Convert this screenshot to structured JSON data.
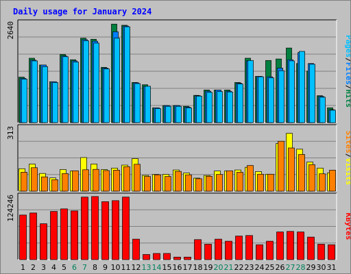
{
  "chart_data": {
    "type": "bar",
    "title": "Daily usage for January 2024",
    "categories": [
      "1",
      "2",
      "3",
      "4",
      "5",
      "6",
      "7",
      "8",
      "9",
      "10",
      "11",
      "12",
      "13",
      "14",
      "15",
      "16",
      "17",
      "18",
      "19",
      "20",
      "21",
      "22",
      "23",
      "24",
      "25",
      "26",
      "27",
      "28",
      "29",
      "30",
      "31"
    ],
    "weekend_days": [
      "6",
      "7",
      "13",
      "14",
      "20",
      "21",
      "27",
      "28"
    ],
    "colors": {
      "hits": "#008040",
      "files": "#0080ff",
      "pages": "#00c0ff",
      "visits": "#ffff00",
      "sites": "#ff8000",
      "kbytes": "#ff0000",
      "weekday_label": "#000000",
      "weekend_label": "#00805c"
    },
    "panels": [
      {
        "id": "hits-files-pages",
        "ylabel_max": "2640",
        "ylim": [
          0,
          2640
        ],
        "legend_order": [
          "Pages",
          "Files",
          "Hits"
        ],
        "series": [
          {
            "name": "Hits",
            "color": "#008040",
            "values": [
              1200,
              1700,
              1520,
              1080,
              1800,
              1660,
              2230,
              2200,
              1460,
              2600,
              2570,
              1060,
              1000,
              390,
              450,
              450,
              430,
              720,
              860,
              860,
              860,
              1060,
              1700,
              1220,
              1640,
              1680,
              1970,
              1560,
              1360,
              710,
              390
            ]
          },
          {
            "name": "Files",
            "color": "#0080ff",
            "values": [
              1170,
              1650,
              1520,
              1080,
              1760,
              1630,
              2190,
              2150,
              1440,
              2400,
              2550,
              1050,
              960,
              390,
              450,
              450,
              410,
              710,
              830,
              860,
              830,
              1040,
              1630,
              1220,
              1210,
              1440,
              1660,
              1850,
              1560,
              690,
              340
            ]
          },
          {
            "name": "Pages",
            "color": "#00c0ff",
            "values": [
              1150,
              1630,
              1480,
              1060,
              1740,
              1600,
              2160,
              2100,
              1420,
              2230,
              2530,
              1030,
              960,
              370,
              430,
              430,
              390,
              700,
              800,
              820,
              810,
              1020,
              1640,
              1210,
              1180,
              1370,
              1630,
              1880,
              1540,
              670,
              330
            ]
          }
        ]
      },
      {
        "id": "visits-sites",
        "ylabel_max": "313",
        "ylim": [
          0,
          313
        ],
        "legend_order": [
          "Sites",
          "Visits"
        ],
        "series": [
          {
            "name": "Visits",
            "color": "#ffff00",
            "values": [
              110,
              133,
              87,
              65,
              106,
              99,
              165,
              133,
              106,
              113,
              128,
              160,
              77,
              82,
              82,
              104,
              89,
              64,
              77,
              99,
              99,
              104,
              117,
              96,
              83,
              234,
              284,
              206,
              143,
              113,
              90
            ]
          },
          {
            "name": "Sites",
            "color": "#ff8000",
            "values": [
              93,
              115,
              70,
              56,
              86,
              100,
              105,
              107,
              101,
              103,
              120,
              132,
              72,
              80,
              72,
              97,
              80,
              61,
              73,
              82,
              100,
              93,
              126,
              83,
              83,
              245,
              212,
              180,
              130,
              85,
              103
            ]
          }
        ]
      },
      {
        "id": "kbytes",
        "ylabel_max": "124246",
        "ylim": [
          0,
          124246
        ],
        "legend_order": [
          "KBytes"
        ],
        "series": [
          {
            "name": "KBytes",
            "color": "#ff0000",
            "values": [
              87000,
              91000,
              70000,
              94000,
              99000,
              95000,
              122000,
              123000,
              113000,
              115000,
              122000,
              40000,
              10000,
              12000,
              12000,
              5000,
              5000,
              39000,
              30000,
              40000,
              36000,
              46000,
              47000,
              29000,
              36000,
              54000,
              55000,
              54000,
              44000,
              30000,
              29000
            ]
          }
        ]
      }
    ]
  }
}
